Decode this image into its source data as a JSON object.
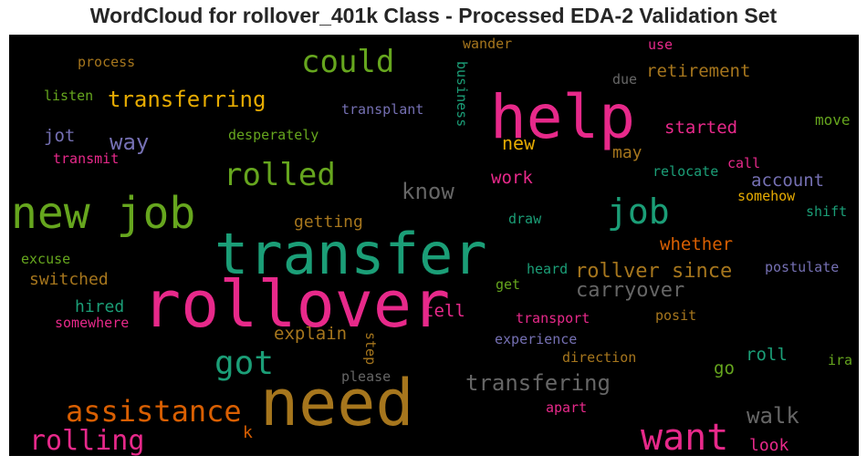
{
  "title": "WordCloud for rollover_401k Class - Processed EDA-2 Validation Set",
  "colors": {
    "background": "#000000",
    "page": "#ffffff",
    "title": "#262626",
    "palette": [
      "#1b9e77",
      "#d95f02",
      "#7570b3",
      "#e7298a",
      "#66a61e",
      "#e6ab02",
      "#a6761d",
      "#666666"
    ]
  },
  "chart_data": {
    "type": "wordcloud",
    "title": "WordCloud for rollover_401k Class - Processed EDA-2 Validation Set",
    "words": [
      {
        "text": "need",
        "weight": 1.0,
        "color": "#a6761d"
      },
      {
        "text": "rollover",
        "weight": 0.95,
        "color": "#e7298a"
      },
      {
        "text": "transfer",
        "weight": 0.9,
        "color": "#1b9e77"
      },
      {
        "text": "help",
        "weight": 0.9,
        "color": "#e7298a"
      },
      {
        "text": "new job",
        "weight": 0.7,
        "color": "#66a61e"
      },
      {
        "text": "want",
        "weight": 0.55,
        "color": "#e7298a"
      },
      {
        "text": "job",
        "weight": 0.48,
        "color": "#1b9e77"
      },
      {
        "text": "rolled",
        "weight": 0.45,
        "color": "#66a61e"
      },
      {
        "text": "assistance",
        "weight": 0.45,
        "color": "#d95f02"
      },
      {
        "text": "got",
        "weight": 0.45,
        "color": "#1b9e77"
      },
      {
        "text": "could",
        "weight": 0.42,
        "color": "#66a61e"
      },
      {
        "text": "rolling",
        "weight": 0.38,
        "color": "#e7298a"
      },
      {
        "text": "transferring",
        "weight": 0.33,
        "color": "#e6ab02"
      },
      {
        "text": "transfering",
        "weight": 0.33,
        "color": "#666666"
      },
      {
        "text": "rollver since",
        "weight": 0.3,
        "color": "#a6761d"
      },
      {
        "text": "carryover",
        "weight": 0.3,
        "color": "#666666"
      },
      {
        "text": "walk",
        "weight": 0.3,
        "color": "#666666"
      },
      {
        "text": "know",
        "weight": 0.28,
        "color": "#666666"
      },
      {
        "text": "way",
        "weight": 0.28,
        "color": "#7570b3"
      },
      {
        "text": "new",
        "weight": 0.25,
        "color": "#e6ab02"
      },
      {
        "text": "explain",
        "weight": 0.22,
        "color": "#a6761d"
      },
      {
        "text": "retirement",
        "weight": 0.22,
        "color": "#a6761d"
      },
      {
        "text": "started",
        "weight": 0.22,
        "color": "#e7298a"
      },
      {
        "text": "account",
        "weight": 0.22,
        "color": "#7570b3"
      },
      {
        "text": "whether",
        "weight": 0.22,
        "color": "#d95f02"
      },
      {
        "text": "work",
        "weight": 0.22,
        "color": "#e7298a"
      },
      {
        "text": "getting",
        "weight": 0.2,
        "color": "#a6761d"
      },
      {
        "text": "switched",
        "weight": 0.2,
        "color": "#a6761d"
      },
      {
        "text": "hired",
        "weight": 0.2,
        "color": "#1b9e77"
      },
      {
        "text": "tell",
        "weight": 0.2,
        "color": "#e7298a"
      },
      {
        "text": "roll",
        "weight": 0.2,
        "color": "#1b9e77"
      },
      {
        "text": "look",
        "weight": 0.2,
        "color": "#e7298a"
      },
      {
        "text": "go",
        "weight": 0.2,
        "color": "#66a61e"
      },
      {
        "text": "may",
        "weight": 0.2,
        "color": "#a6761d"
      },
      {
        "text": "jot",
        "weight": 0.18,
        "color": "#7570b3"
      },
      {
        "text": "k",
        "weight": 0.18,
        "color": "#d95f02"
      },
      {
        "text": "move",
        "weight": 0.15,
        "color": "#66a61e"
      },
      {
        "text": "process",
        "weight": 0.15,
        "color": "#a6761d"
      },
      {
        "text": "listen",
        "weight": 0.15,
        "color": "#66a61e"
      },
      {
        "text": "desperately",
        "weight": 0.15,
        "color": "#66a61e"
      },
      {
        "text": "transplant",
        "weight": 0.15,
        "color": "#7570b3"
      },
      {
        "text": "business",
        "weight": 0.15,
        "color": "#1b9e77"
      },
      {
        "text": "wander",
        "weight": 0.15,
        "color": "#a6761d"
      },
      {
        "text": "due",
        "weight": 0.15,
        "color": "#666666"
      },
      {
        "text": "use",
        "weight": 0.15,
        "color": "#e7298a"
      },
      {
        "text": "transmit",
        "weight": 0.15,
        "color": "#e7298a"
      },
      {
        "text": "relocate",
        "weight": 0.15,
        "color": "#1b9e77"
      },
      {
        "text": "call",
        "weight": 0.15,
        "color": "#e7298a"
      },
      {
        "text": "somehow",
        "weight": 0.15,
        "color": "#e6ab02"
      },
      {
        "text": "shift",
        "weight": 0.15,
        "color": "#1b9e77"
      },
      {
        "text": "draw",
        "weight": 0.15,
        "color": "#1b9e77"
      },
      {
        "text": "excuse",
        "weight": 0.15,
        "color": "#66a61e"
      },
      {
        "text": "heard",
        "weight": 0.15,
        "color": "#1b9e77"
      },
      {
        "text": "postulate",
        "weight": 0.15,
        "color": "#7570b3"
      },
      {
        "text": "get",
        "weight": 0.15,
        "color": "#66a61e"
      },
      {
        "text": "somewhere",
        "weight": 0.15,
        "color": "#e7298a"
      },
      {
        "text": "transport",
        "weight": 0.15,
        "color": "#e7298a"
      },
      {
        "text": "posit",
        "weight": 0.15,
        "color": "#a6761d"
      },
      {
        "text": "step",
        "weight": 0.15,
        "color": "#a6761d"
      },
      {
        "text": "experience",
        "weight": 0.15,
        "color": "#7570b3"
      },
      {
        "text": "direction",
        "weight": 0.15,
        "color": "#a6761d"
      },
      {
        "text": "please",
        "weight": 0.15,
        "color": "#666666"
      },
      {
        "text": "ira",
        "weight": 0.15,
        "color": "#66a61e"
      },
      {
        "text": "apart",
        "weight": 0.15,
        "color": "#e7298a"
      }
    ]
  }
}
